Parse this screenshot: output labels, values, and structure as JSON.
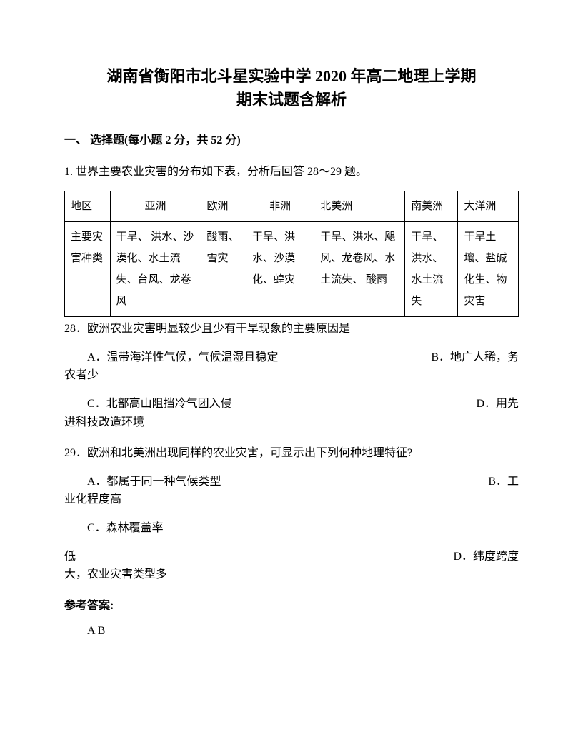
{
  "title_line1": "湖南省衡阳市北斗星实验中学 2020 年高二地理上学期",
  "title_line2": "期末试题含解析",
  "section_heading": "一、 选择题(每小题 2 分，共 52 分)",
  "intro": "1. 世界主要农业灾害的分布如下表，分析后回答 28～29 题。",
  "table": {
    "header": [
      "地区",
      "亚洲",
      "欧洲",
      "非洲",
      "北美洲",
      "南美洲",
      "大洋洲"
    ],
    "row_label": "主要灾害种类",
    "cells": [
      "干旱、 洪水、沙漠化、水土流失、台风、龙卷风",
      "酸雨、雪灾",
      "干旱、洪水、沙漠化、蝗灾",
      "干旱、洪水、飓风、龙卷风、水土流失、 酸雨",
      "干旱、洪水、水土流失",
      "干旱土壤、盐碱化生、物灾害"
    ]
  },
  "q28": {
    "stem": "28．欧洲农业灾害明显较少且少有干旱现象的主要原因是",
    "optA": "A．温带海洋性气候，气候温湿且稳定",
    "optB": "B．地广人稀，务",
    "optB_cont": "农者少",
    "optC": "C．北部高山阻挡冷气团入侵",
    "optD": "D．用先",
    "optD_cont": "进科技改造环境"
  },
  "q29": {
    "stem": "29．欧洲和北美洲出现同样的农业灾害，可显示出下列何种地理特征?",
    "optA": "A．都属于同一种气候类型",
    "optB": "B．工",
    "optB_cont": "业化程度高",
    "optC": "C．森林覆盖率",
    "optC_cont": "低",
    "optD": "D．纬度跨度",
    "optD_cont": "大，农业灾害类型多"
  },
  "answer_label": "参考答案:",
  "answer_text": "A  B"
}
